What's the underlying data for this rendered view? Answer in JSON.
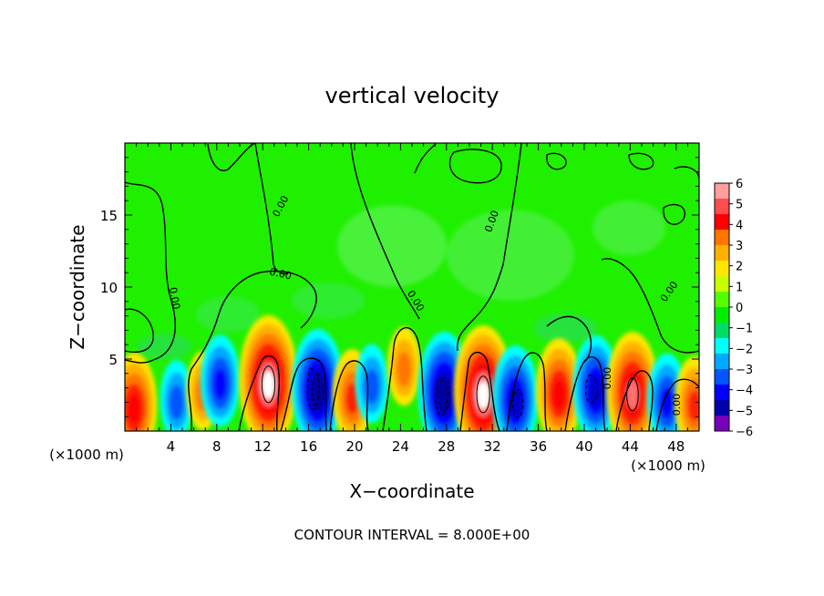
{
  "chart_data": {
    "type": "heatmap",
    "title": "vertical velocity",
    "xlabel": "X−coordinate",
    "ylabel": "Z−coordinate",
    "x_unit_left": "(×1000 m)",
    "x_unit_right": "(×1000 m)",
    "footer": "CONTOUR INTERVAL = 8.000E+00",
    "xlim": [
      0,
      50
    ],
    "ylim": [
      0,
      20
    ],
    "x_ticks": [
      "4",
      "8",
      "12",
      "16",
      "20",
      "24",
      "28",
      "32",
      "36",
      "40",
      "44",
      "48"
    ],
    "y_ticks": [
      "5",
      "10",
      "15"
    ],
    "contour_labels": [
      "0.00",
      "0.00",
      "0.00",
      "0.00",
      "0.00",
      "0.00",
      "0.00",
      "0.00"
    ],
    "colorbar": {
      "tick_labels": [
        "6",
        "5",
        "4",
        "3",
        "2",
        "1",
        "0",
        "−1",
        "−2",
        "−3",
        "−4",
        "−5",
        "−6"
      ],
      "colors": [
        "#ff9e9e",
        "#ff4d4d",
        "#ff0000",
        "#ff7700",
        "#ffb000",
        "#ffe600",
        "#c8ff00",
        "#55ff00",
        "#00ee00",
        "#00dd66",
        "#00ffff",
        "#00aaff",
        "#0055ff",
        "#0000ff",
        "#0000aa",
        "#7700bb"
      ]
    },
    "cells": [
      {
        "x": 0.8,
        "z": 1.8,
        "v": 5
      },
      {
        "x": 4.5,
        "z": 2.2,
        "v": -3
      },
      {
        "x": 6.8,
        "z": 2.8,
        "v": 3
      },
      {
        "x": 8.3,
        "z": 3.5,
        "v": -4
      },
      {
        "x": 12.5,
        "z": 3.5,
        "v": 7
      },
      {
        "x": 16.8,
        "z": 3.0,
        "v": -6
      },
      {
        "x": 19.8,
        "z": 2.5,
        "v": 4
      },
      {
        "x": 21.5,
        "z": 3.3,
        "v": -3
      },
      {
        "x": 24.3,
        "z": 4.5,
        "v": 3
      },
      {
        "x": 27.8,
        "z": 2.8,
        "v": -6
      },
      {
        "x": 31.2,
        "z": 2.8,
        "v": 7
      },
      {
        "x": 34.0,
        "z": 2.3,
        "v": -5
      },
      {
        "x": 37.8,
        "z": 2.8,
        "v": 5
      },
      {
        "x": 41.0,
        "z": 3.0,
        "v": -5
      },
      {
        "x": 44.2,
        "z": 2.8,
        "v": 6
      },
      {
        "x": 47.2,
        "z": 2.2,
        "v": -4
      },
      {
        "x": 49.6,
        "z": 2.0,
        "v": 4
      }
    ]
  }
}
